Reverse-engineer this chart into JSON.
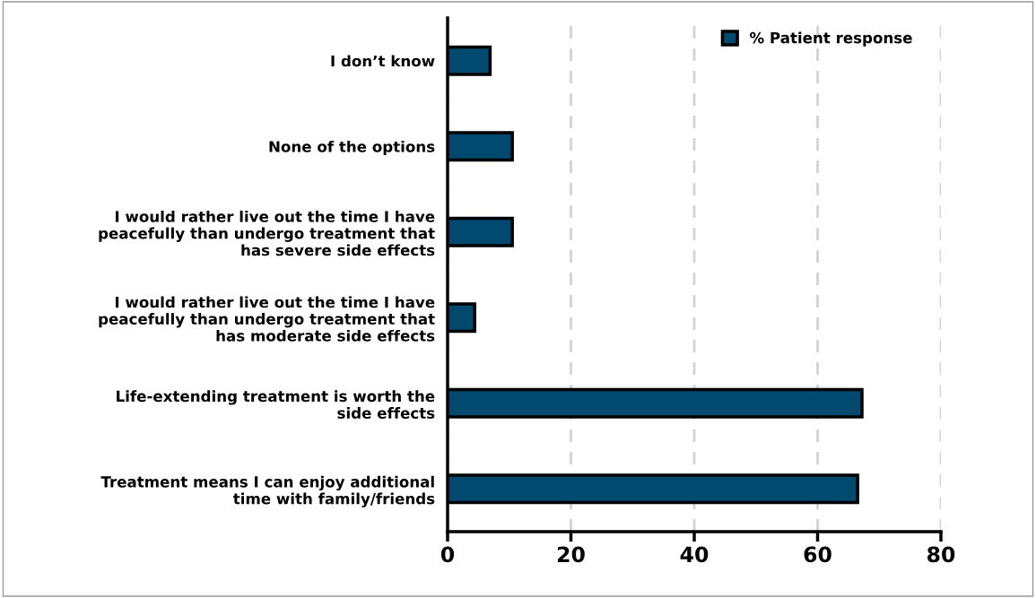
{
  "chart_data": {
    "type": "bar",
    "orientation": "horizontal",
    "categories": [
      "I don’t know",
      "None of the options",
      "I would rather live out the time I have\npeacefully than undergo treatment that\nhas severe side effects",
      "I would rather live out the time I have\npeacefully than undergo treatment that\nhas moderate side effects",
      "Life-extending treatment is worth the\nside effects",
      "Treatment means I can enjoy additional\ntime with family/friends"
    ],
    "series": [
      {
        "name": "% Patient response",
        "color": "#02496f",
        "values": [
          6.9,
          10.5,
          10.5,
          4.4,
          67.2,
          66.5
        ]
      }
    ],
    "xlim": [
      0,
      80
    ],
    "xticks": [
      0,
      20,
      40,
      60,
      80
    ],
    "grid": "x",
    "legend": "top right"
  }
}
